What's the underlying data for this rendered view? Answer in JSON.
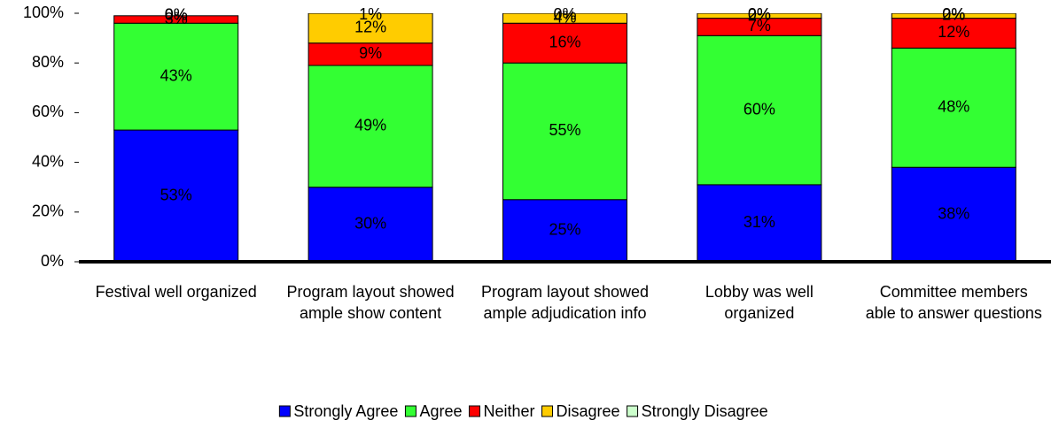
{
  "chart_data": {
    "type": "bar",
    "stacked": true,
    "categories": [
      "Festival well organized",
      "Program layout showed ample show content",
      "Program layout showed ample adjudication info",
      "Lobby was well organized",
      "Committee members able to answer questions"
    ],
    "series": [
      {
        "name": "Strongly Agree",
        "color": "#0000ff",
        "values": [
          53,
          30,
          25,
          31,
          38
        ],
        "value_labels": [
          "53%",
          "30%",
          "25%",
          "31%",
          "38%"
        ]
      },
      {
        "name": "Agree",
        "color": "#33ff33",
        "values": [
          43,
          49,
          55,
          60,
          48
        ],
        "value_labels": [
          "43%",
          "49%",
          "55%",
          "60%",
          "48%"
        ]
      },
      {
        "name": "Neither",
        "color": "#ff0000",
        "values": [
          3,
          9,
          16,
          7,
          12
        ],
        "value_labels": [
          "3%",
          "9%",
          "16%",
          "7%",
          "12%"
        ]
      },
      {
        "name": "Disagree",
        "color": "#ffcc00",
        "values": [
          0,
          12,
          4,
          2,
          2
        ],
        "value_labels": [
          "0%",
          "12%",
          "4%",
          "2%",
          "2%"
        ]
      },
      {
        "name": "Strongly Disagree",
        "color": "#ccffcc",
        "values": [
          0,
          1,
          0,
          0,
          0
        ],
        "value_labels": [
          "0%",
          "1%",
          "0%",
          "0%",
          "0%"
        ]
      }
    ],
    "ylim": [
      0,
      100
    ],
    "yticks": [
      {
        "value": 0,
        "label": "0%"
      },
      {
        "value": 20,
        "label": "20%"
      },
      {
        "value": 40,
        "label": "40%"
      },
      {
        "value": 60,
        "label": "60%"
      },
      {
        "value": 80,
        "label": "80%"
      },
      {
        "value": 100,
        "label": "100%"
      }
    ],
    "legend": "bottom"
  }
}
